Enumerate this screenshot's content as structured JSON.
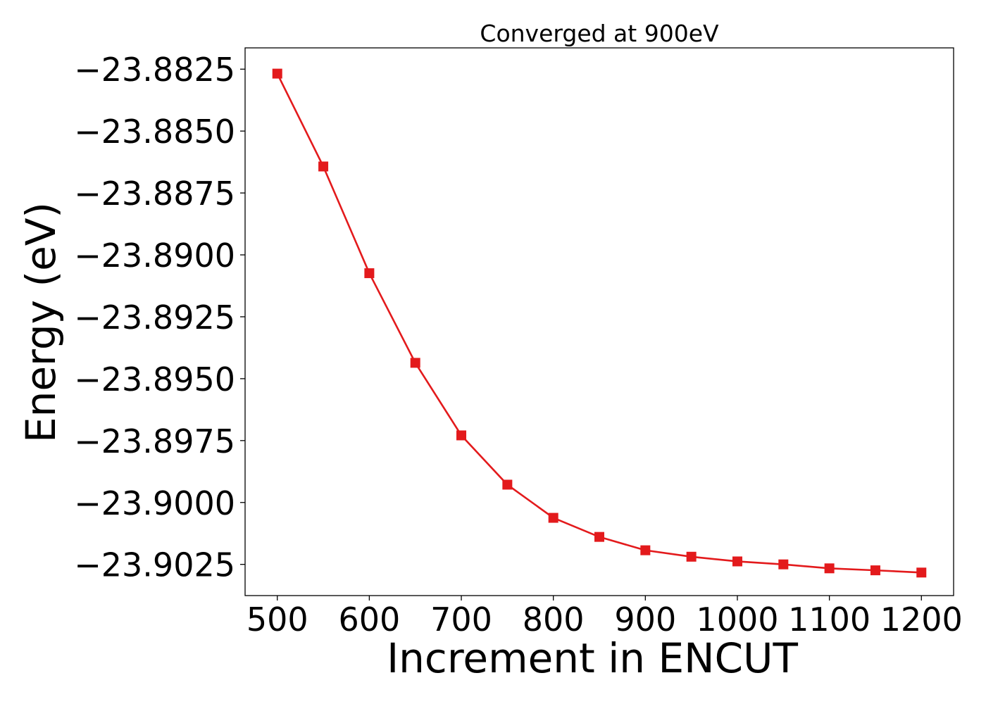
{
  "chart_data": {
    "type": "line",
    "title": "Converged at 900eV",
    "xlabel": "Increment in ENCUT",
    "ylabel": "Energy (eV)",
    "x": [
      500,
      550,
      600,
      650,
      700,
      750,
      800,
      850,
      900,
      950,
      1000,
      1050,
      1100,
      1150,
      1200
    ],
    "series": [
      {
        "color": "#e31a1c",
        "marker": "square",
        "values": [
          -23.88268,
          -23.88643,
          -23.89074,
          -23.89436,
          -23.89729,
          -23.89928,
          -23.90062,
          -23.90139,
          -23.90193,
          -23.90219,
          -23.90238,
          -23.9025,
          -23.90266,
          -23.90274,
          -23.90283
        ]
      }
    ],
    "xlim": [
      465,
      1235
    ],
    "ylim": [
      -23.90376,
      -23.88164
    ],
    "xticks": [
      500,
      600,
      700,
      800,
      900,
      1000,
      1100,
      1200
    ],
    "xtick_labels": [
      "500",
      "600",
      "700",
      "800",
      "900",
      "1000",
      "1100",
      "1200"
    ],
    "yticks": [
      -23.8825,
      -23.885,
      -23.8875,
      -23.89,
      -23.8925,
      -23.895,
      -23.8975,
      -23.9,
      -23.9025
    ],
    "ytick_labels": [
      "−23.8825",
      "−23.8850",
      "−23.8875",
      "−23.8900",
      "−23.8925",
      "−23.8950",
      "−23.8975",
      "−23.9000",
      "−23.9025"
    ],
    "grid": false,
    "legend": "none"
  }
}
